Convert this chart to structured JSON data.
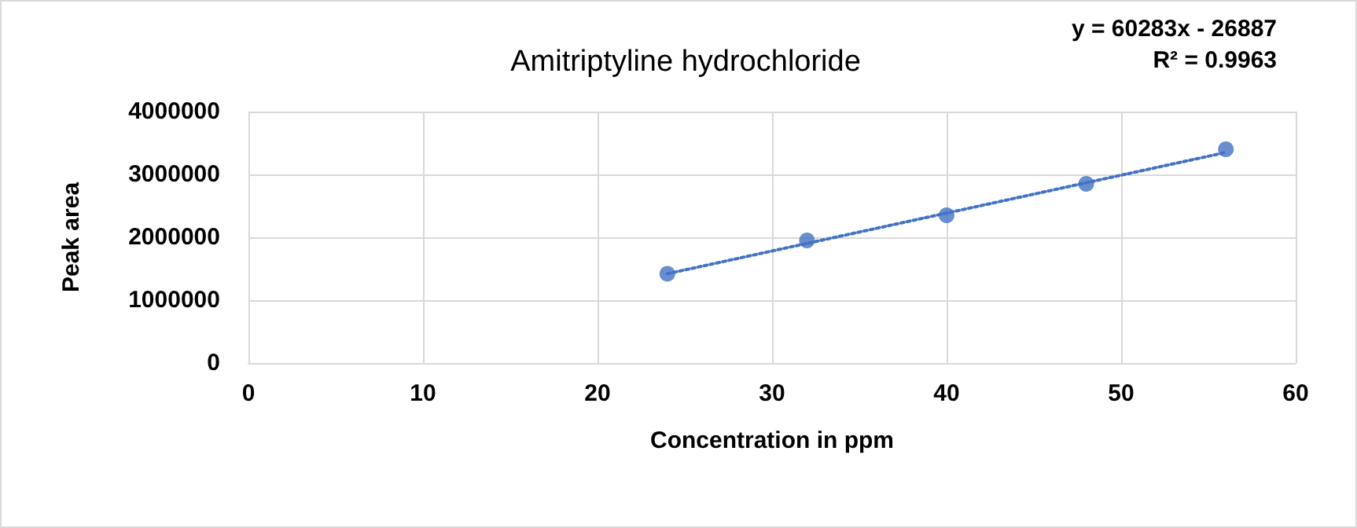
{
  "chart_data": {
    "type": "scatter",
    "title": "Amitriptyline hydrochloride",
    "xlabel": "Concentration in ppm",
    "ylabel": "Peak area",
    "annotations": [
      "y = 60283x - 26887",
      "R² = 0.9963"
    ],
    "x": [
      24,
      32,
      40,
      48,
      56
    ],
    "series": [
      {
        "color": "#4472c4",
        "values": [
          1420000,
          1950000,
          2350000,
          2850000,
          3400000
        ],
        "marker": "circle"
      },
      {
        "type": "line",
        "color": "#4472c4",
        "x": [
          24,
          56
        ],
        "values": [
          1420000,
          3350000
        ],
        "line_style": "dotted",
        "marker": "none"
      }
    ],
    "xlim": [
      0,
      60
    ],
    "xticks": [
      0,
      10,
      20,
      30,
      40,
      50,
      60
    ],
    "ylim": [
      0,
      4000000
    ],
    "yticks": [
      0,
      1000000,
      2000000,
      3000000,
      4000000
    ],
    "grid": true
  }
}
